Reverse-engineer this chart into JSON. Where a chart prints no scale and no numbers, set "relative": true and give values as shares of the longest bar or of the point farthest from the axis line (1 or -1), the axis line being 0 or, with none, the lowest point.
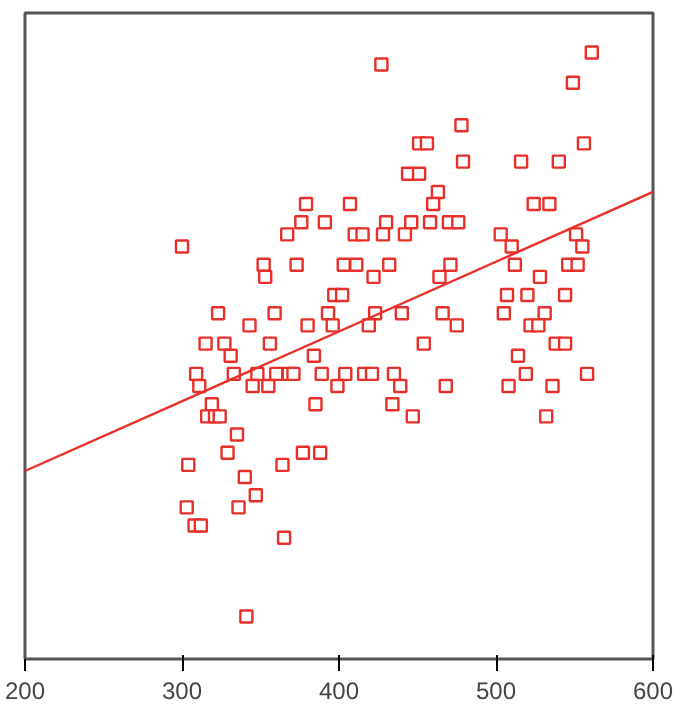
{
  "chart_data": {
    "type": "scatter",
    "relative": true,
    "xlim": [
      200,
      600
    ],
    "xticks": [
      200,
      300,
      400,
      500,
      600
    ],
    "tick_labels": "x",
    "grid": false,
    "marker": "square",
    "series": [
      {
        "color": "#e8302a",
        "x": [
          300,
          379,
          376,
          391,
          367,
          407,
          352,
          373,
          403,
          353,
          397,
          402,
          323,
          359,
          393,
          343,
          380,
          396,
          315,
          327,
          356,
          331,
          309,
          333,
          348,
          360,
          368,
          371,
          389,
          404,
          311,
          345,
          355,
          399,
          384,
          385,
          319,
          316,
          321,
          324,
          335,
          329,
          377,
          388,
          304,
          364,
          340,
          347,
          303,
          336,
          308,
          312,
          365,
          341,
          427,
          561,
          549,
          478,
          451,
          456,
          556,
          479,
          516,
          540,
          444,
          451,
          463,
          460,
          524,
          534,
          430,
          446,
          458,
          470,
          476,
          410,
          415,
          428,
          442,
          503,
          551,
          510,
          555,
          411,
          432,
          471,
          512,
          546,
          552,
          422,
          464,
          528,
          507,
          520,
          544,
          423,
          440,
          466,
          505,
          531,
          419,
          475,
          522,
          527,
          454,
          538,
          544,
          514,
          416,
          421,
          435,
          519,
          558,
          439,
          468,
          508,
          536,
          434,
          447,
          532
        ],
        "values": [
          0.68,
          0.75,
          0.72,
          0.72,
          0.7,
          0.75,
          0.65,
          0.65,
          0.65,
          0.63,
          0.6,
          0.6,
          0.57,
          0.57,
          0.57,
          0.55,
          0.55,
          0.55,
          0.52,
          0.52,
          0.52,
          0.5,
          0.47,
          0.47,
          0.47,
          0.47,
          0.47,
          0.47,
          0.47,
          0.47,
          0.45,
          0.45,
          0.45,
          0.45,
          0.5,
          0.42,
          0.42,
          0.4,
          0.4,
          0.4,
          0.37,
          0.34,
          0.34,
          0.34,
          0.32,
          0.32,
          0.3,
          0.27,
          0.25,
          0.25,
          0.22,
          0.22,
          0.2,
          0.07,
          0.98,
          1.0,
          0.95,
          0.88,
          0.85,
          0.85,
          0.85,
          0.82,
          0.82,
          0.82,
          0.8,
          0.8,
          0.77,
          0.75,
          0.75,
          0.75,
          0.72,
          0.72,
          0.72,
          0.72,
          0.72,
          0.7,
          0.7,
          0.7,
          0.7,
          0.7,
          0.7,
          0.68,
          0.68,
          0.65,
          0.65,
          0.65,
          0.65,
          0.65,
          0.65,
          0.63,
          0.63,
          0.63,
          0.6,
          0.6,
          0.6,
          0.57,
          0.57,
          0.57,
          0.57,
          0.57,
          0.55,
          0.55,
          0.55,
          0.55,
          0.52,
          0.52,
          0.52,
          0.5,
          0.47,
          0.47,
          0.47,
          0.47,
          0.47,
          0.45,
          0.45,
          0.45,
          0.45,
          0.42,
          0.4,
          0.4
        ]
      },
      {
        "type": "line",
        "marker": "none",
        "color": "#e8302a",
        "x": [
          200,
          600
        ],
        "values": [
          0.31,
          0.77
        ]
      }
    ]
  }
}
